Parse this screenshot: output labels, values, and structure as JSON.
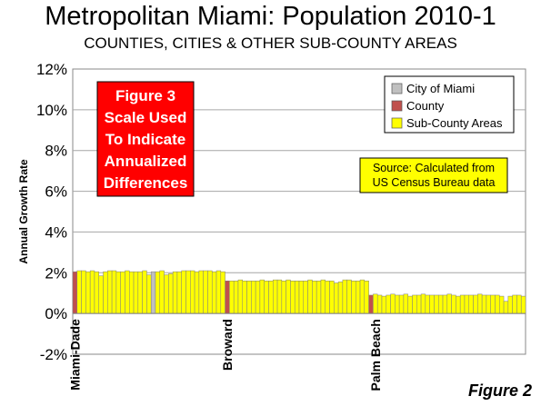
{
  "page": {
    "title": "Metropolitan Miami: Population 2010-1",
    "subtitle": "COUNTIES, CITIES & OTHER SUB-COUNTY AREAS",
    "figure_label": "Figure 2"
  },
  "chart_data": {
    "type": "bar",
    "ylabel": "Annual Growth Rate",
    "ylim": [
      -0.02,
      0.12
    ],
    "ytick_values": [
      -0.02,
      0,
      0.02,
      0.04,
      0.06,
      0.08,
      0.1,
      0.12
    ],
    "ytick_labels": [
      "-2%",
      "0%",
      "2%",
      "4%",
      "6%",
      "8%",
      "10%",
      "12%"
    ],
    "grid": true,
    "legend_position": "top-right",
    "legend": [
      {
        "label": "City of Miami",
        "color": "#c0c0c0"
      },
      {
        "label": "County",
        "color": "#c0504d"
      },
      {
        "label": "Sub-County Areas",
        "color": "#ffff00"
      }
    ],
    "group_labels": [
      {
        "label": "Miami-Dade",
        "index": 0
      },
      {
        "label": "Broward",
        "index": 35
      },
      {
        "label": "Palm Beach",
        "index": 69
      }
    ],
    "annotation_box": {
      "lines": [
        "Figure 3",
        "Scale Used",
        "To Indicate",
        "Annualized",
        "Differences"
      ],
      "bg": "#ff0000",
      "text_color": "#ffffff"
    },
    "source_box": {
      "lines": [
        "Source: Calculated from",
        "US Census Bureau data"
      ],
      "bg": "#ffff00"
    },
    "colors": {
      "sub": "#ffff00",
      "county": "#c0504d",
      "city": "#c0c0c0"
    },
    "bars": [
      {
        "v": 0.0205,
        "c": "county"
      },
      {
        "v": 0.021,
        "c": "sub"
      },
      {
        "v": 0.021,
        "c": "sub"
      },
      {
        "v": 0.0205,
        "c": "sub"
      },
      {
        "v": 0.021,
        "c": "sub"
      },
      {
        "v": 0.0205,
        "c": "sub"
      },
      {
        "v": 0.0185,
        "c": "sub"
      },
      {
        "v": 0.0205,
        "c": "sub"
      },
      {
        "v": 0.021,
        "c": "sub"
      },
      {
        "v": 0.021,
        "c": "sub"
      },
      {
        "v": 0.0205,
        "c": "sub"
      },
      {
        "v": 0.0205,
        "c": "sub"
      },
      {
        "v": 0.021,
        "c": "sub"
      },
      {
        "v": 0.0205,
        "c": "sub"
      },
      {
        "v": 0.0205,
        "c": "sub"
      },
      {
        "v": 0.0205,
        "c": "sub"
      },
      {
        "v": 0.021,
        "c": "sub"
      },
      {
        "v": 0.019,
        "c": "sub"
      },
      {
        "v": 0.0205,
        "c": "city"
      },
      {
        "v": 0.0205,
        "c": "sub"
      },
      {
        "v": 0.021,
        "c": "sub"
      },
      {
        "v": 0.019,
        "c": "sub"
      },
      {
        "v": 0.0195,
        "c": "sub"
      },
      {
        "v": 0.0205,
        "c": "sub"
      },
      {
        "v": 0.0205,
        "c": "sub"
      },
      {
        "v": 0.021,
        "c": "sub"
      },
      {
        "v": 0.021,
        "c": "sub"
      },
      {
        "v": 0.021,
        "c": "sub"
      },
      {
        "v": 0.0205,
        "c": "sub"
      },
      {
        "v": 0.021,
        "c": "sub"
      },
      {
        "v": 0.021,
        "c": "sub"
      },
      {
        "v": 0.021,
        "c": "sub"
      },
      {
        "v": 0.0205,
        "c": "sub"
      },
      {
        "v": 0.021,
        "c": "sub"
      },
      {
        "v": 0.0205,
        "c": "sub"
      },
      {
        "v": 0.016,
        "c": "county"
      },
      {
        "v": 0.016,
        "c": "sub"
      },
      {
        "v": 0.016,
        "c": "sub"
      },
      {
        "v": 0.0165,
        "c": "sub"
      },
      {
        "v": 0.016,
        "c": "sub"
      },
      {
        "v": 0.016,
        "c": "sub"
      },
      {
        "v": 0.016,
        "c": "sub"
      },
      {
        "v": 0.016,
        "c": "sub"
      },
      {
        "v": 0.0165,
        "c": "sub"
      },
      {
        "v": 0.016,
        "c": "sub"
      },
      {
        "v": 0.016,
        "c": "sub"
      },
      {
        "v": 0.0165,
        "c": "sub"
      },
      {
        "v": 0.0165,
        "c": "sub"
      },
      {
        "v": 0.016,
        "c": "sub"
      },
      {
        "v": 0.0165,
        "c": "sub"
      },
      {
        "v": 0.016,
        "c": "sub"
      },
      {
        "v": 0.016,
        "c": "sub"
      },
      {
        "v": 0.016,
        "c": "sub"
      },
      {
        "v": 0.016,
        "c": "sub"
      },
      {
        "v": 0.0165,
        "c": "sub"
      },
      {
        "v": 0.016,
        "c": "sub"
      },
      {
        "v": 0.016,
        "c": "sub"
      },
      {
        "v": 0.0165,
        "c": "sub"
      },
      {
        "v": 0.016,
        "c": "sub"
      },
      {
        "v": 0.016,
        "c": "sub"
      },
      {
        "v": 0.015,
        "c": "sub"
      },
      {
        "v": 0.0155,
        "c": "sub"
      },
      {
        "v": 0.0165,
        "c": "sub"
      },
      {
        "v": 0.0165,
        "c": "sub"
      },
      {
        "v": 0.016,
        "c": "sub"
      },
      {
        "v": 0.016,
        "c": "sub"
      },
      {
        "v": 0.0165,
        "c": "sub"
      },
      {
        "v": 0.016,
        "c": "sub"
      },
      {
        "v": 0.009,
        "c": "county"
      },
      {
        "v": 0.0095,
        "c": "sub"
      },
      {
        "v": 0.009,
        "c": "sub"
      },
      {
        "v": 0.0085,
        "c": "sub"
      },
      {
        "v": 0.009,
        "c": "sub"
      },
      {
        "v": 0.0095,
        "c": "sub"
      },
      {
        "v": 0.009,
        "c": "sub"
      },
      {
        "v": 0.009,
        "c": "sub"
      },
      {
        "v": 0.0095,
        "c": "sub"
      },
      {
        "v": 0.0085,
        "c": "sub"
      },
      {
        "v": 0.009,
        "c": "sub"
      },
      {
        "v": 0.009,
        "c": "sub"
      },
      {
        "v": 0.0095,
        "c": "sub"
      },
      {
        "v": 0.009,
        "c": "sub"
      },
      {
        "v": 0.009,
        "c": "sub"
      },
      {
        "v": 0.009,
        "c": "sub"
      },
      {
        "v": 0.009,
        "c": "sub"
      },
      {
        "v": 0.009,
        "c": "sub"
      },
      {
        "v": 0.0095,
        "c": "sub"
      },
      {
        "v": 0.009,
        "c": "sub"
      },
      {
        "v": 0.0085,
        "c": "sub"
      },
      {
        "v": 0.009,
        "c": "sub"
      },
      {
        "v": 0.009,
        "c": "sub"
      },
      {
        "v": 0.009,
        "c": "sub"
      },
      {
        "v": 0.009,
        "c": "sub"
      },
      {
        "v": 0.0095,
        "c": "sub"
      },
      {
        "v": 0.009,
        "c": "sub"
      },
      {
        "v": 0.009,
        "c": "sub"
      },
      {
        "v": 0.009,
        "c": "sub"
      },
      {
        "v": 0.009,
        "c": "sub"
      },
      {
        "v": 0.0085,
        "c": "sub"
      },
      {
        "v": 0.006,
        "c": "sub"
      },
      {
        "v": 0.0085,
        "c": "sub"
      },
      {
        "v": 0.009,
        "c": "sub"
      },
      {
        "v": 0.009,
        "c": "sub"
      },
      {
        "v": 0.0085,
        "c": "sub"
      }
    ]
  }
}
